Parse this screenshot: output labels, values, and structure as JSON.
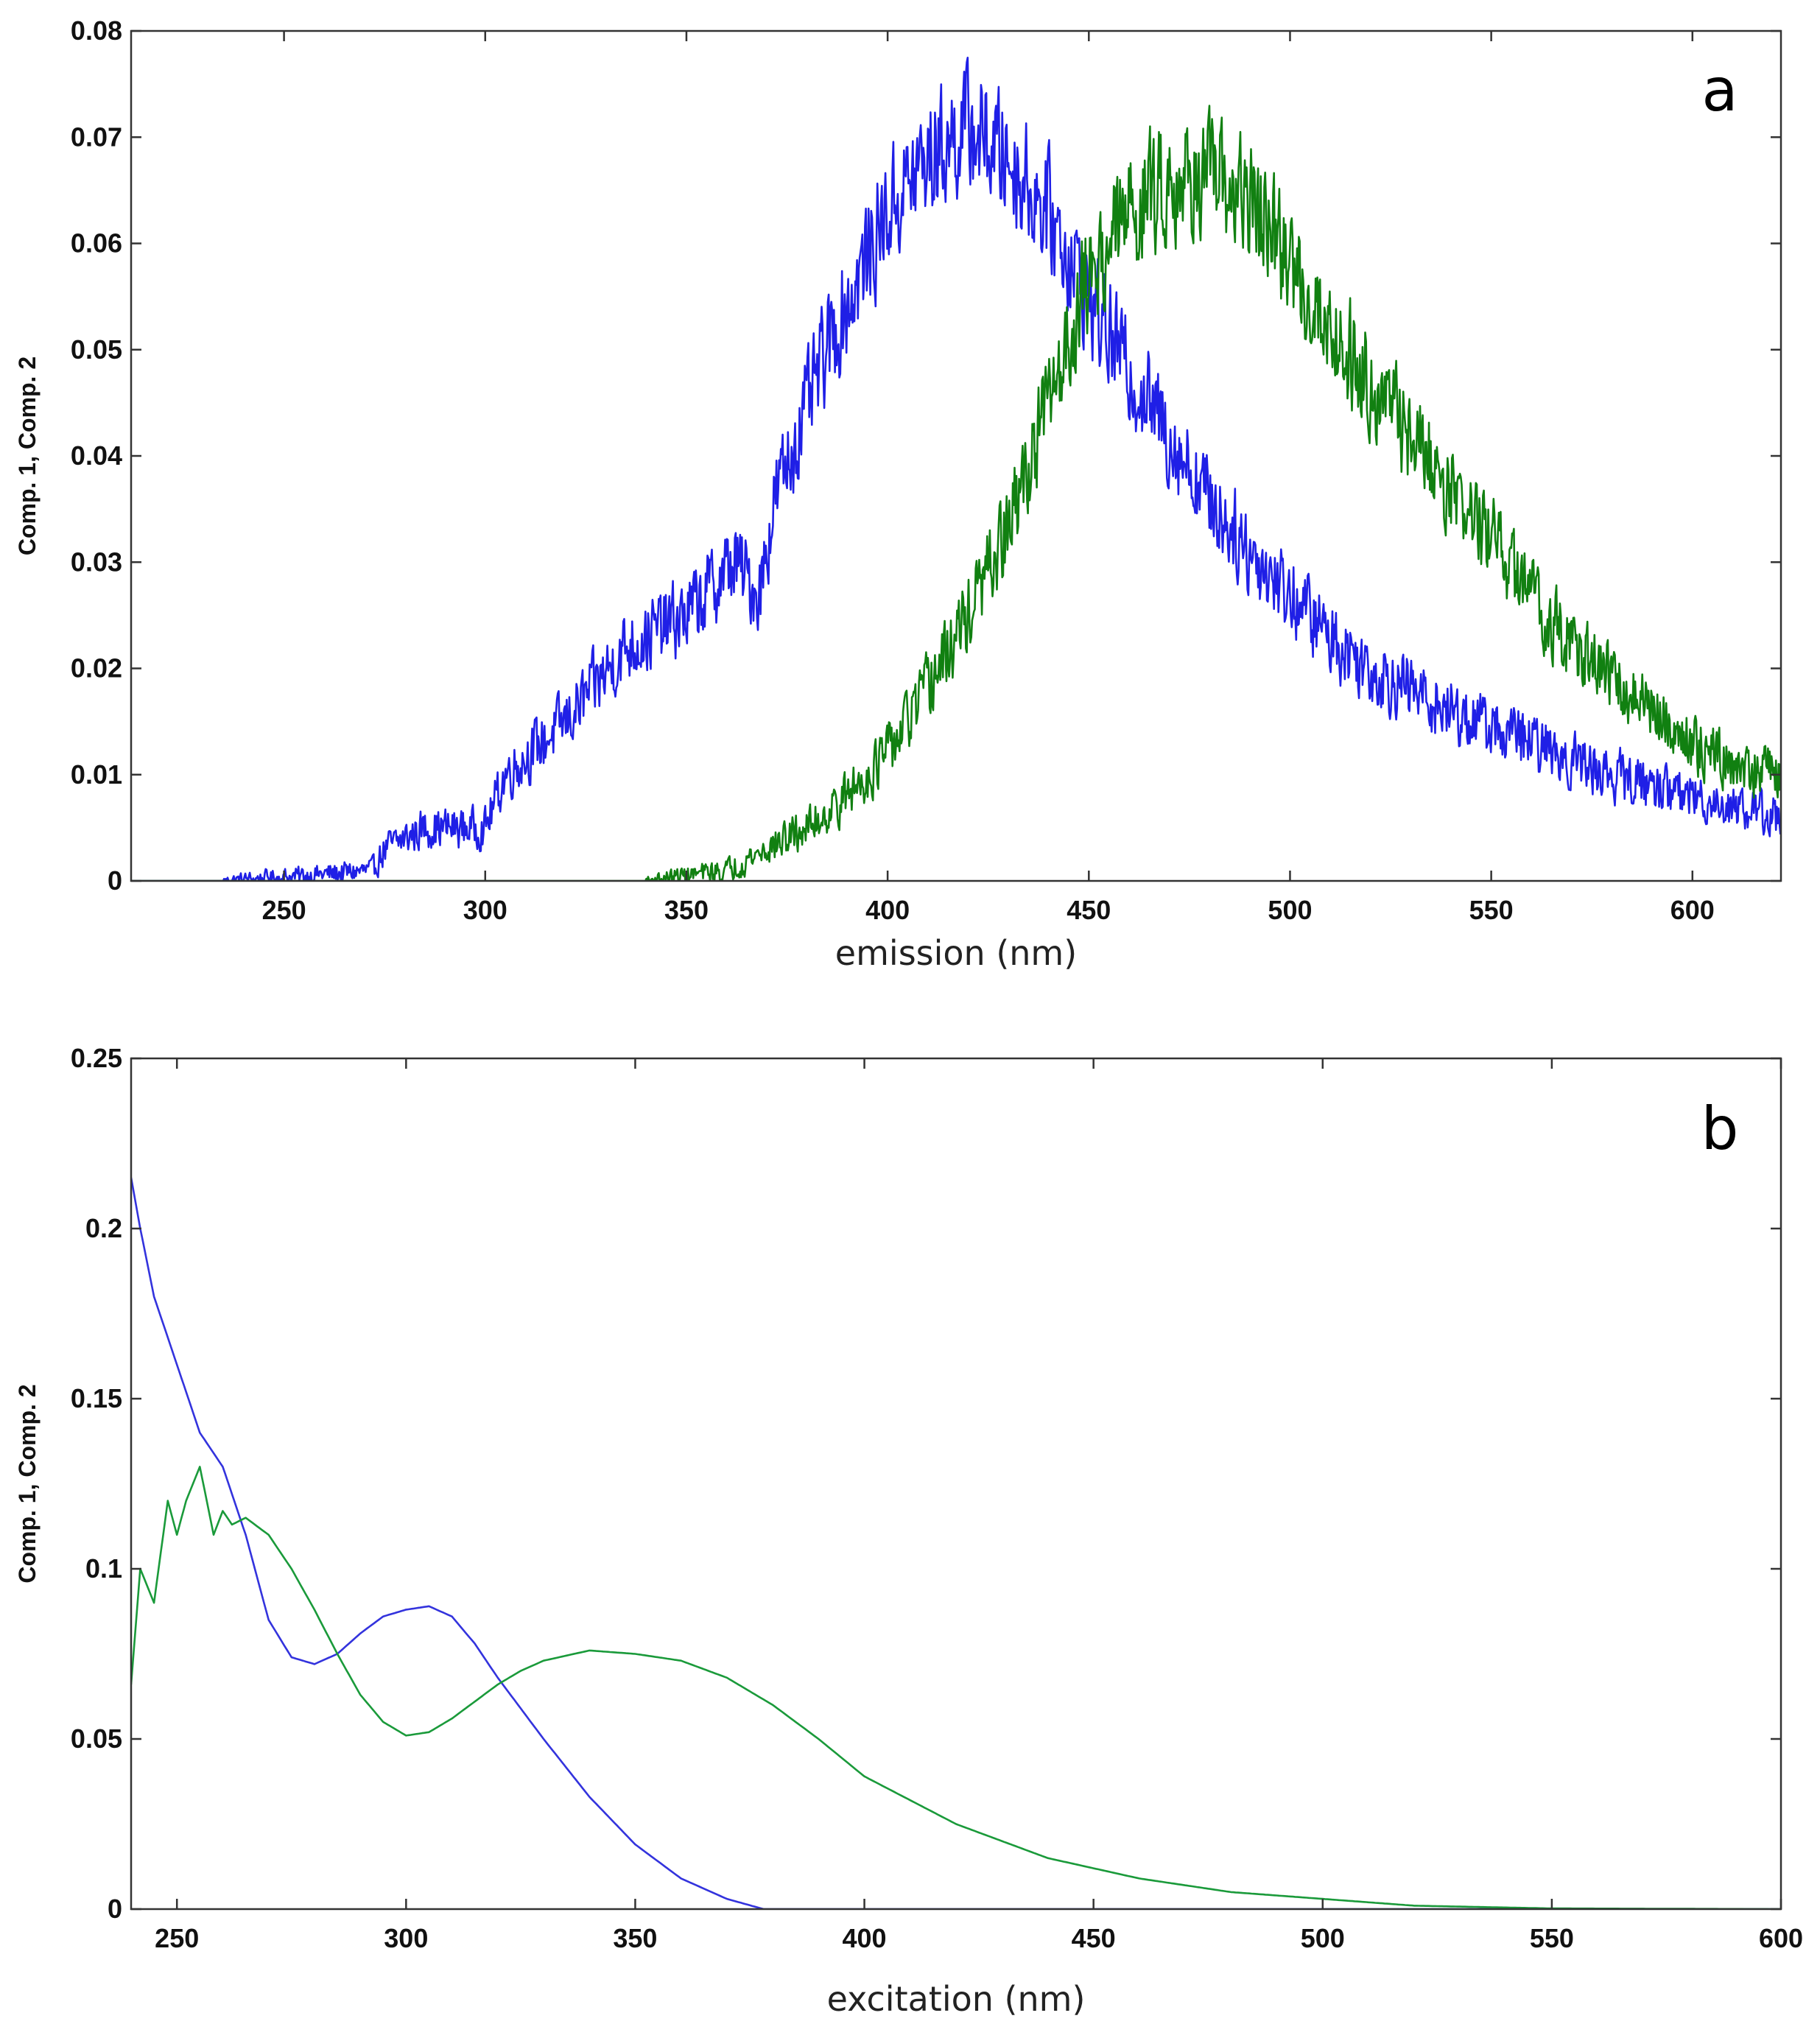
{
  "chart_data": [
    {
      "type": "line",
      "panel_label": "a",
      "xlabel": "emission (nm)",
      "ylabel": "Comp. 1, Comp. 2",
      "xlim": [
        212,
        622
      ],
      "ylim": [
        0,
        0.08
      ],
      "xticks": [
        250,
        300,
        350,
        400,
        450,
        500,
        550,
        600
      ],
      "yticks": [
        0,
        0.01,
        0.02,
        0.03,
        0.04,
        0.05,
        0.06,
        0.07,
        0.08
      ],
      "ytick_labels": [
        "0",
        "0.01",
        "0.02",
        "0.03",
        "0.04",
        "0.05",
        "0.06",
        "0.07",
        "0.08"
      ],
      "grid": false,
      "noise_scale": 0.0065,
      "series": [
        {
          "name": "Comp. 1",
          "color": "#1f1fe6",
          "x": [
            212,
            235,
            255,
            272,
            275,
            285,
            300,
            305,
            320,
            335,
            350,
            362,
            368,
            372,
            385,
            400,
            410,
            420,
            430,
            440,
            450,
            460,
            470,
            480,
            490,
            500,
            510,
            520,
            540,
            560,
            580,
            600,
            622
          ],
          "y": [
            0,
            0,
            0.0005,
            0.001,
            0.003,
            0.005,
            0.005,
            0.01,
            0.015,
            0.022,
            0.025,
            0.03,
            0.027,
            0.036,
            0.05,
            0.063,
            0.068,
            0.071,
            0.068,
            0.063,
            0.055,
            0.048,
            0.042,
            0.036,
            0.031,
            0.027,
            0.023,
            0.02,
            0.016,
            0.013,
            0.01,
            0.008,
            0.006
          ]
        },
        {
          "name": "Comp. 2",
          "color": "#118011",
          "x": [
            212,
            340,
            360,
            370,
            380,
            390,
            400,
            410,
            420,
            430,
            440,
            450,
            460,
            470,
            480,
            490,
            500,
            510,
            520,
            530,
            540,
            550,
            560,
            570,
            580,
            590,
            600,
            610,
            622
          ],
          "y": [
            0,
            0,
            0.001,
            0.003,
            0.005,
            0.008,
            0.012,
            0.018,
            0.025,
            0.033,
            0.045,
            0.057,
            0.063,
            0.066,
            0.066,
            0.064,
            0.058,
            0.052,
            0.047,
            0.042,
            0.037,
            0.032,
            0.027,
            0.022,
            0.019,
            0.016,
            0.013,
            0.011,
            0.01
          ]
        }
      ]
    },
    {
      "type": "line",
      "panel_label": "b",
      "xlabel": "excitation (nm)",
      "ylabel": "Comp. 1, Comp. 2",
      "xlim": [
        240,
        600
      ],
      "ylim": [
        0,
        0.25
      ],
      "xticks": [
        250,
        300,
        350,
        400,
        450,
        500,
        550,
        600
      ],
      "yticks": [
        0,
        0.05,
        0.1,
        0.15,
        0.2,
        0.25
      ],
      "ytick_labels": [
        "0",
        "0.05",
        "0.1",
        "0.15",
        "0.2",
        "0.25"
      ],
      "grid": false,
      "noise_scale": 0,
      "series": [
        {
          "name": "Comp. 1",
          "color": "#3333dd",
          "x": [
            240,
            242,
            245,
            250,
            255,
            260,
            265,
            270,
            275,
            280,
            285,
            290,
            295,
            300,
            305,
            310,
            315,
            320,
            330,
            340,
            350,
            360,
            370,
            378,
            600
          ],
          "y": [
            0.215,
            0.2,
            0.18,
            0.16,
            0.14,
            0.13,
            0.11,
            0.085,
            0.074,
            0.072,
            0.075,
            0.081,
            0.086,
            0.088,
            0.089,
            0.086,
            0.078,
            0.068,
            0.05,
            0.033,
            0.019,
            0.009,
            0.003,
            0,
            0
          ]
        },
        {
          "name": "Comp. 2",
          "color": "#1a9a3a",
          "x": [
            240,
            242,
            245,
            248,
            250,
            252,
            255,
            258,
            260,
            262,
            265,
            270,
            275,
            280,
            285,
            290,
            295,
            300,
            305,
            310,
            315,
            320,
            325,
            330,
            340,
            350,
            360,
            370,
            380,
            390,
            400,
            420,
            440,
            460,
            480,
            500,
            520,
            550,
            600
          ],
          "y": [
            0.066,
            0.1,
            0.09,
            0.12,
            0.11,
            0.12,
            0.13,
            0.11,
            0.117,
            0.113,
            0.115,
            0.11,
            0.1,
            0.088,
            0.075,
            0.063,
            0.055,
            0.051,
            0.052,
            0.056,
            0.061,
            0.066,
            0.07,
            0.073,
            0.076,
            0.075,
            0.073,
            0.068,
            0.06,
            0.05,
            0.039,
            0.025,
            0.015,
            0.009,
            0.005,
            0.003,
            0.001,
            0.0002,
            0
          ]
        }
      ]
    }
  ]
}
